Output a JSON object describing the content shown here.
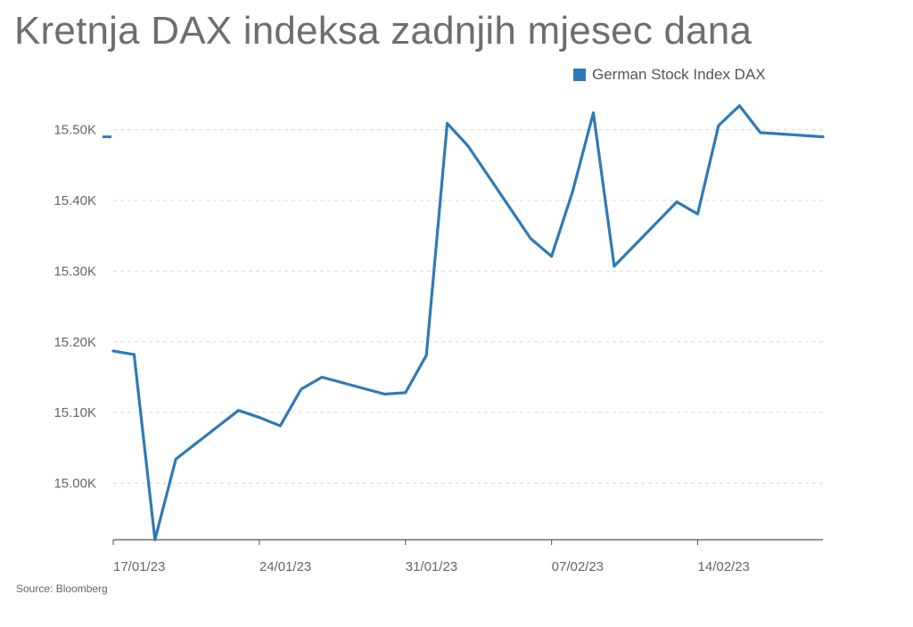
{
  "title": "Kretnja DAX indeksa zadnjih mjesec dana",
  "source": "Source: Bloomberg",
  "colors": {
    "series": "#2f7ab5",
    "grid": "#d9d9d9",
    "axis": "#555555"
  },
  "chart_data": {
    "type": "line",
    "title": "Kretnja DAX indeksa zadnjih mjesec dana",
    "xlabel": "",
    "ylabel": "",
    "legend": "top-right",
    "grid": true,
    "ylim": [
      14920,
      15545
    ],
    "y_ticks": [
      15000,
      15100,
      15200,
      15300,
      15400,
      15500
    ],
    "y_tick_labels": [
      "15.00K",
      "15.10K",
      "15.20K",
      "15.30K",
      "15.40K",
      "15.50K"
    ],
    "x_ticks": [
      "2023-01-17",
      "2023-01-24",
      "2023-01-31",
      "2023-02-07",
      "2023-02-14"
    ],
    "x_tick_labels": [
      "17/01/23",
      "24/01/23",
      "31/01/23",
      "07/02/23",
      "14/02/23"
    ],
    "x_range": [
      "2023-01-17",
      "2023-02-20"
    ],
    "series": [
      {
        "name": "German Stock Index DAX",
        "color": "#2f7ab5",
        "x": [
          "2023-01-17",
          "2023-01-18",
          "2023-01-19",
          "2023-01-20",
          "2023-01-23",
          "2023-01-24",
          "2023-01-25",
          "2023-01-26",
          "2023-01-27",
          "2023-01-30",
          "2023-01-31",
          "2023-02-01",
          "2023-02-02",
          "2023-02-03",
          "2023-02-06",
          "2023-02-07",
          "2023-02-08",
          "2023-02-09",
          "2023-02-10",
          "2023-02-13",
          "2023-02-14",
          "2023-02-15",
          "2023-02-16",
          "2023-02-17",
          "2023-02-20"
        ],
        "values": [
          15187,
          15182,
          14920,
          15034,
          15103,
          15093,
          15081,
          15133,
          15150,
          15126,
          15128,
          15181,
          15509,
          15477,
          15346,
          15321,
          15412,
          15524,
          15307,
          15398,
          15381,
          15506,
          15534,
          15496,
          15490
        ]
      }
    ]
  }
}
